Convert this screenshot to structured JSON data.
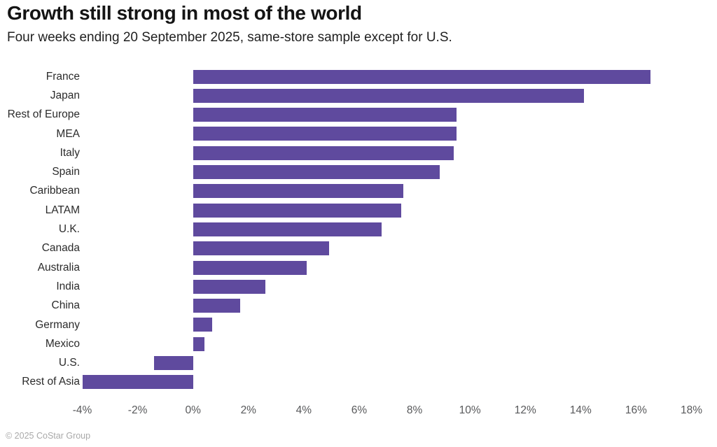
{
  "header": {
    "title": "Growth still strong in most of the world",
    "subtitle": "Four weeks ending 20 September 2025, same-store sample except for U.S."
  },
  "footer": {
    "copyright": "© 2025 CoStar Group"
  },
  "colors": {
    "bar": "#5f4a9e",
    "title_text": "#141414",
    "category_label": "#2b2b2b",
    "axis_label": "#58595b",
    "footer_text": "#a9a9a9",
    "background": "#ffffff"
  },
  "chart_data": {
    "type": "bar",
    "orientation": "horizontal",
    "title": "Growth still strong in most of the world",
    "subtitle": "Four weeks ending 20 September 2025, same-store sample except for U.S.",
    "xlabel": "",
    "ylabel": "",
    "unit": "%",
    "xlim": [
      -4,
      18
    ],
    "xticks": [
      -4,
      -2,
      0,
      2,
      4,
      6,
      8,
      10,
      12,
      14,
      16,
      18
    ],
    "xtick_suffix": "%",
    "grid": false,
    "legend": false,
    "bar_color": "#5f4a9e",
    "categories": [
      "France",
      "Japan",
      "Rest of Europe",
      "MEA",
      "Italy",
      "Spain",
      "Caribbean",
      "LATAM",
      "U.K.",
      "Canada",
      "Australia",
      "India",
      "China",
      "Germany",
      "Mexico",
      "U.S.",
      "Rest of Asia"
    ],
    "values": [
      16.5,
      14.1,
      9.5,
      9.5,
      9.4,
      8.9,
      7.6,
      7.5,
      6.8,
      4.9,
      4.1,
      2.6,
      1.7,
      0.7,
      0.4,
      -1.4,
      -4.0
    ]
  }
}
